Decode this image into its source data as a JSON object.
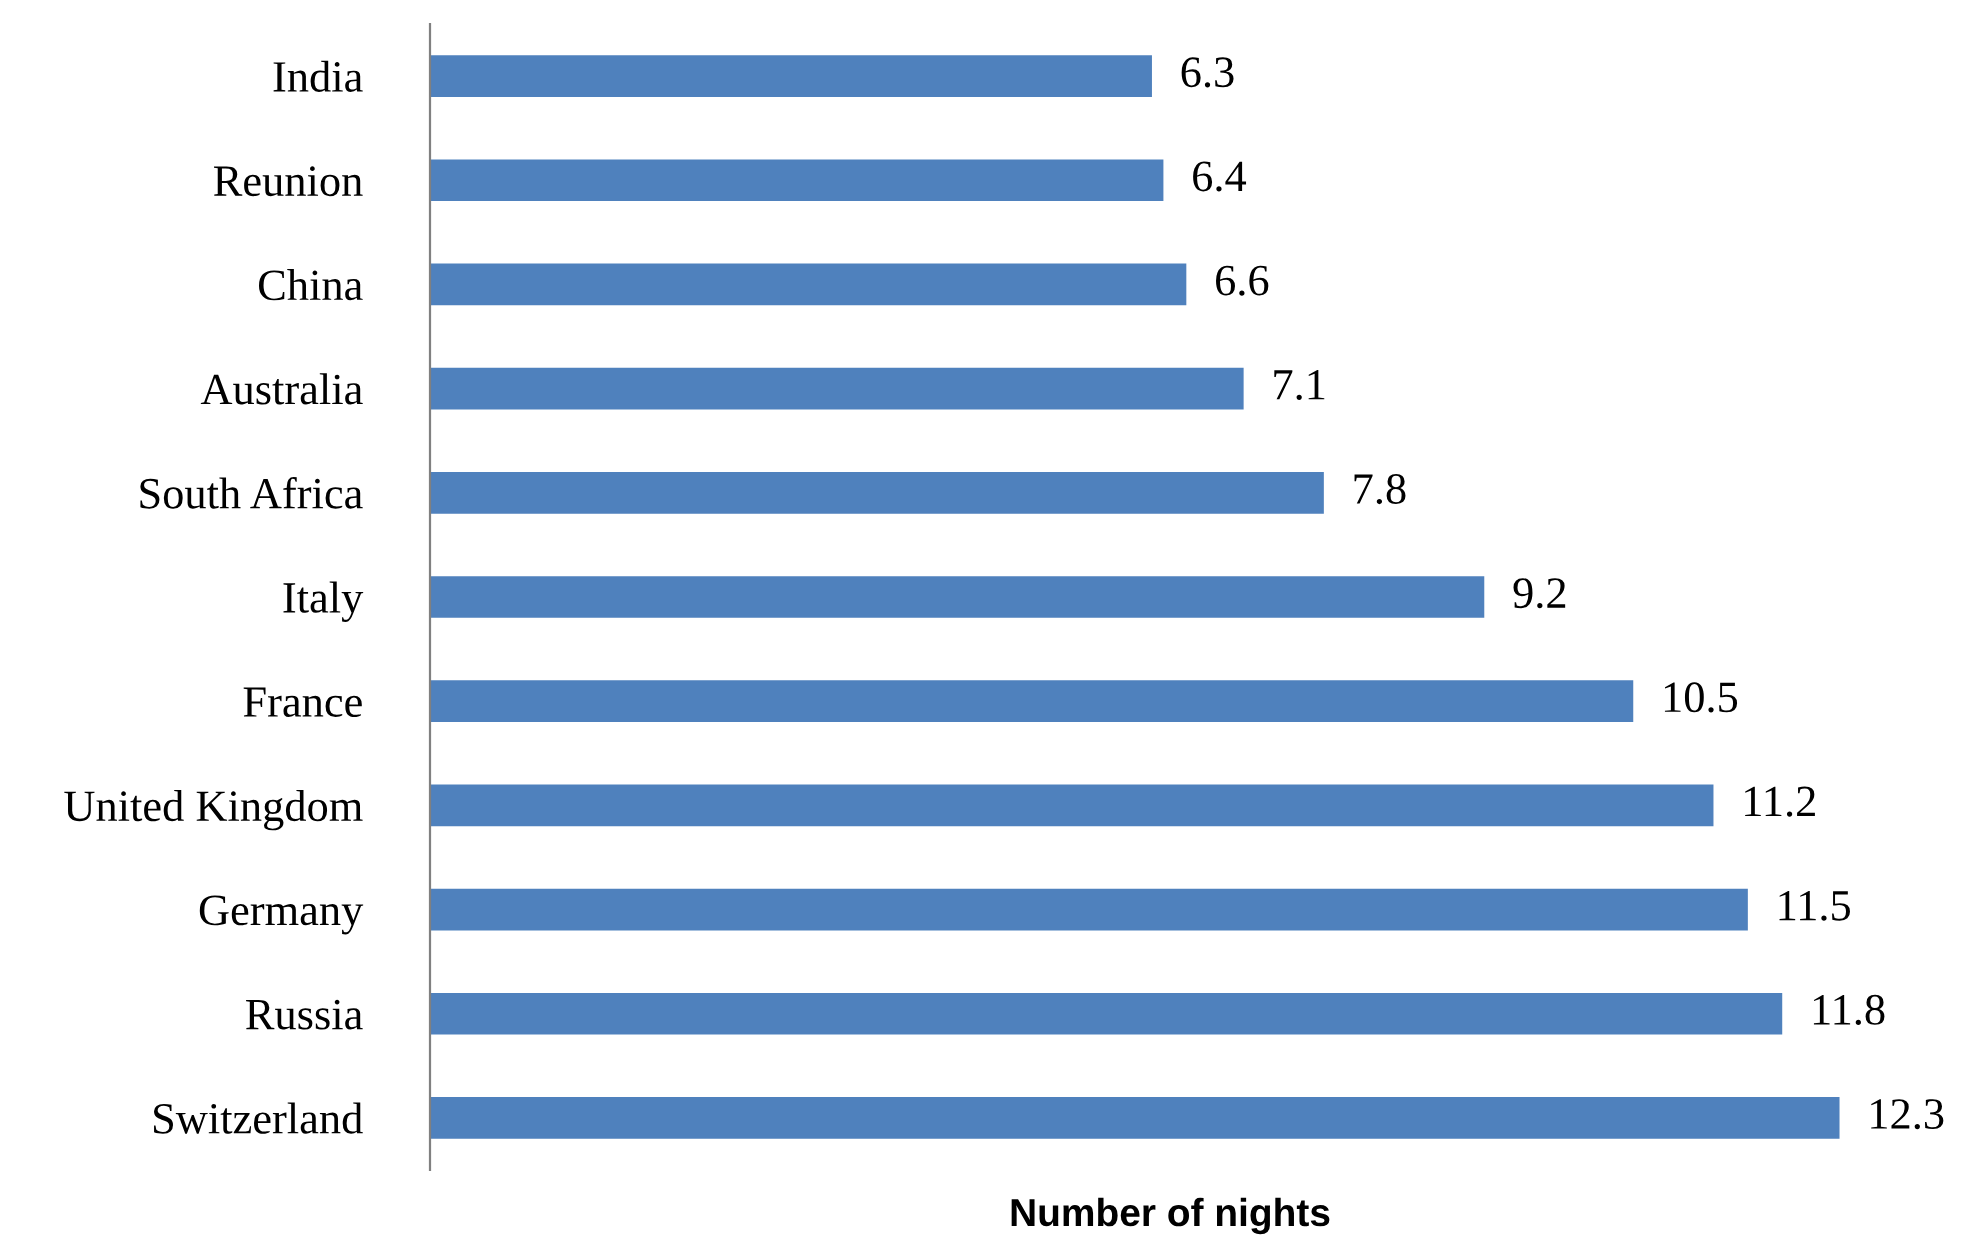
{
  "chart_data": {
    "type": "bar",
    "orientation": "horizontal",
    "xlabel": "Number of nights",
    "categories": [
      "India",
      "Reunion",
      "China",
      "Australia",
      "South Africa",
      "Italy",
      "France",
      "United Kingdom",
      "Germany",
      "Russia",
      "Switzerland"
    ],
    "values": [
      6.3,
      6.4,
      6.6,
      7.1,
      7.8,
      9.2,
      10.5,
      11.2,
      11.5,
      11.8,
      12.3
    ],
    "color": "#4f81bd",
    "data_labels": true,
    "tick_labels": "y",
    "grid": false,
    "legend": false
  }
}
